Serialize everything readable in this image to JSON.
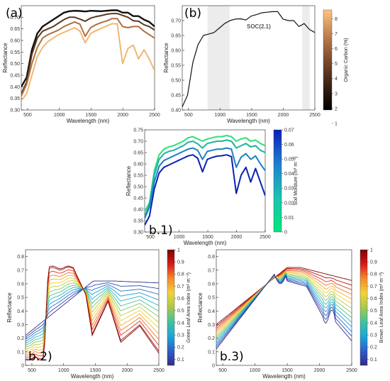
{
  "chart_data": [
    {
      "id": "a",
      "type": "line",
      "panel_label": "(a)",
      "xlabel": "Wavelength (nm)",
      "ylabel": "Reflectance",
      "xlim": [
        400,
        2500
      ],
      "ylim": [
        0.3,
        0.75
      ],
      "xticks": [
        500,
        1000,
        1500,
        2000,
        2500
      ],
      "yticks": [
        0.3,
        0.35,
        0.4,
        0.45,
        0.5,
        0.55,
        0.6,
        0.65,
        0.7
      ],
      "grid": false,
      "colorbar": null,
      "series": [
        {
          "color": "#111111",
          "width": 2.4,
          "values": [
            0.4,
            0.44,
            0.56,
            0.63,
            0.66,
            0.675,
            0.69,
            0.705,
            0.72,
            0.726,
            0.728,
            0.727,
            0.725,
            0.728,
            0.727,
            0.726,
            0.728,
            0.73,
            0.73,
            0.72,
            0.72,
            0.705,
            0.705,
            0.69,
            0.68,
            0.66
          ]
        },
        {
          "color": "#5a3821",
          "width": 2.0,
          "values": [
            0.37,
            0.42,
            0.54,
            0.61,
            0.64,
            0.65,
            0.66,
            0.675,
            0.69,
            0.7,
            0.7,
            0.692,
            0.683,
            0.696,
            0.703,
            0.707,
            0.713,
            0.716,
            0.716,
            0.708,
            0.7,
            0.685,
            0.683,
            0.668,
            0.66,
            0.645
          ]
        },
        {
          "color": "#b06f40",
          "width": 2.0,
          "values": [
            0.36,
            0.41,
            0.5,
            0.57,
            0.61,
            0.625,
            0.635,
            0.645,
            0.66,
            0.67,
            0.68,
            0.67,
            0.618,
            0.655,
            0.668,
            0.677,
            0.684,
            0.694,
            0.694,
            0.66,
            0.655,
            0.66,
            0.66,
            0.64,
            0.625,
            0.61
          ]
        },
        {
          "color": "#f0b870",
          "width": 2.0,
          "values": [
            0.34,
            0.37,
            0.45,
            0.53,
            0.57,
            0.595,
            0.61,
            0.625,
            0.635,
            0.645,
            0.655,
            0.64,
            0.59,
            0.63,
            0.642,
            0.652,
            0.662,
            0.672,
            0.672,
            0.5,
            0.565,
            0.58,
            0.52,
            0.56,
            0.52,
            0.47
          ]
        }
      ]
    },
    {
      "id": "b",
      "type": "line",
      "panel_label": "(b)",
      "xlabel": "Wavelength (nm)",
      "ylabel": "Reflectance",
      "xlim": [
        400,
        2500
      ],
      "ylim": [
        0.4,
        0.75
      ],
      "xticks": [
        500,
        1000,
        1500,
        2000,
        2500
      ],
      "yticks": [
        0.4,
        0.45,
        0.5,
        0.55,
        0.6,
        0.65,
        0.7
      ],
      "grid": false,
      "annotation": "SOC(2.1)",
      "shaded_bands": [
        [
          800,
          1150
        ],
        [
          2300,
          2420
        ]
      ],
      "colorbar": {
        "label": "Organic Carbon (%)",
        "ticks": [
          1,
          2,
          3,
          4,
          5,
          6,
          7,
          8
        ],
        "range": [
          1.9,
          8.6
        ],
        "stops": [
          "#000000",
          "#3a2313",
          "#7c4b2b",
          "#c08050",
          "#ffc480"
        ]
      },
      "series": [
        {
          "color": "#111111",
          "width": 1.2,
          "values": [
            0.41,
            0.45,
            0.56,
            0.62,
            0.65,
            0.655,
            0.66,
            0.675,
            0.69,
            0.7,
            0.705,
            0.706,
            0.702,
            0.715,
            0.72,
            0.726,
            0.728,
            0.73,
            0.73,
            0.705,
            0.7,
            0.7,
            0.68,
            0.69,
            0.67,
            0.66
          ]
        }
      ]
    },
    {
      "id": "b1",
      "type": "line",
      "panel_label": "b.1)",
      "xlabel": "Wavelength (nm)",
      "ylabel": "Reflectance",
      "xlim": [
        400,
        2500
      ],
      "ylim": [
        0.3,
        0.75
      ],
      "xticks": [
        500,
        1000,
        1500,
        2000,
        2500
      ],
      "yticks": [
        0.3,
        0.35,
        0.4,
        0.45,
        0.5,
        0.55,
        0.6,
        0.65,
        0.7,
        0.75
      ],
      "grid": false,
      "colorbar": {
        "label": "Soil Moisture (m³ m⁻³)",
        "ticks": [
          0,
          0.01,
          0.02,
          0.03,
          0.04,
          0.05,
          0.06,
          0.07
        ],
        "range": [
          0,
          0.07
        ],
        "stops": [
          "#00e87a",
          "#1cc4b0",
          "#1f7fd0",
          "#0a1fb8"
        ]
      },
      "series": [
        {
          "color": "#2de07c",
          "width": 2.0,
          "values": [
            0.39,
            0.43,
            0.57,
            0.64,
            0.665,
            0.675,
            0.68,
            0.69,
            0.7,
            0.715,
            0.72,
            0.71,
            0.7,
            0.71,
            0.715,
            0.72,
            0.72,
            0.725,
            0.72,
            0.7,
            0.71,
            0.715,
            0.7,
            0.705,
            0.69,
            0.68
          ]
        },
        {
          "color": "#1fb2a0",
          "width": 2.0,
          "values": [
            0.37,
            0.42,
            0.55,
            0.62,
            0.645,
            0.655,
            0.66,
            0.67,
            0.68,
            0.695,
            0.7,
            0.688,
            0.67,
            0.69,
            0.695,
            0.7,
            0.7,
            0.705,
            0.7,
            0.67,
            0.68,
            0.69,
            0.675,
            0.68,
            0.66,
            0.65
          ]
        },
        {
          "color": "#1c7fc2",
          "width": 2.0,
          "values": [
            0.36,
            0.41,
            0.52,
            0.59,
            0.615,
            0.625,
            0.635,
            0.645,
            0.655,
            0.665,
            0.67,
            0.66,
            0.62,
            0.655,
            0.66,
            0.665,
            0.665,
            0.67,
            0.665,
            0.585,
            0.63,
            0.645,
            0.62,
            0.635,
            0.6,
            0.57
          ]
        },
        {
          "color": "#0a22b3",
          "width": 2.0,
          "values": [
            0.33,
            0.37,
            0.49,
            0.56,
            0.585,
            0.595,
            0.605,
            0.615,
            0.625,
            0.635,
            0.64,
            0.625,
            0.565,
            0.62,
            0.628,
            0.634,
            0.636,
            0.64,
            0.632,
            0.47,
            0.55,
            0.585,
            0.52,
            0.58,
            0.52,
            0.46
          ]
        }
      ]
    },
    {
      "id": "b2",
      "type": "line",
      "panel_label": "b.2)",
      "xlabel": "Wavelength (nm)",
      "ylabel": "Reflectance",
      "xlim": [
        400,
        2500
      ],
      "ylim": [
        0,
        0.85
      ],
      "xticks": [
        500,
        1000,
        1500,
        2000,
        2500
      ],
      "yticks": [
        0,
        0.1,
        0.2,
        0.3,
        0.4,
        0.5,
        0.6,
        0.7,
        0.8
      ],
      "grid": false,
      "colorbar": {
        "label": "Green Leaf Area Index (m² m⁻²)",
        "ticks": [
          0.1,
          0.2,
          0.3,
          0.4,
          0.5,
          0.6,
          0.7,
          0.8,
          0.9,
          1
        ],
        "range": [
          0.05,
          1.0
        ],
        "stops": [
          "#352a87",
          "#2d5ec8",
          "#1aa5d6",
          "#40c2a0",
          "#a8c84a",
          "#f2d33a",
          "#f58a2a",
          "#d81a1a",
          "#7a0403"
        ]
      },
      "series": []
    },
    {
      "id": "b3",
      "type": "line",
      "panel_label": "b.3)",
      "xlabel": "Wavelength (nm)",
      "ylabel": "Reflectance",
      "xlim": [
        400,
        2500
      ],
      "ylim": [
        0,
        0.85
      ],
      "xticks": [
        500,
        1000,
        1500,
        2000,
        2500
      ],
      "yticks": [
        0,
        0.1,
        0.2,
        0.3,
        0.4,
        0.5,
        0.6,
        0.7,
        0.8
      ],
      "grid": false,
      "colorbar": {
        "label": "Brown Leaf Area Index (m² m⁻²)",
        "ticks": [
          0.1,
          0.2,
          0.3,
          0.4,
          0.5,
          0.6,
          0.7,
          0.8,
          0.9,
          1
        ],
        "range": [
          0.05,
          1.0
        ],
        "stops": [
          "#352a87",
          "#2d5ec8",
          "#1aa5d6",
          "#40c2a0",
          "#a8c84a",
          "#f2d33a",
          "#f58a2a",
          "#d81a1a",
          "#7a0403"
        ]
      },
      "series": []
    }
  ]
}
